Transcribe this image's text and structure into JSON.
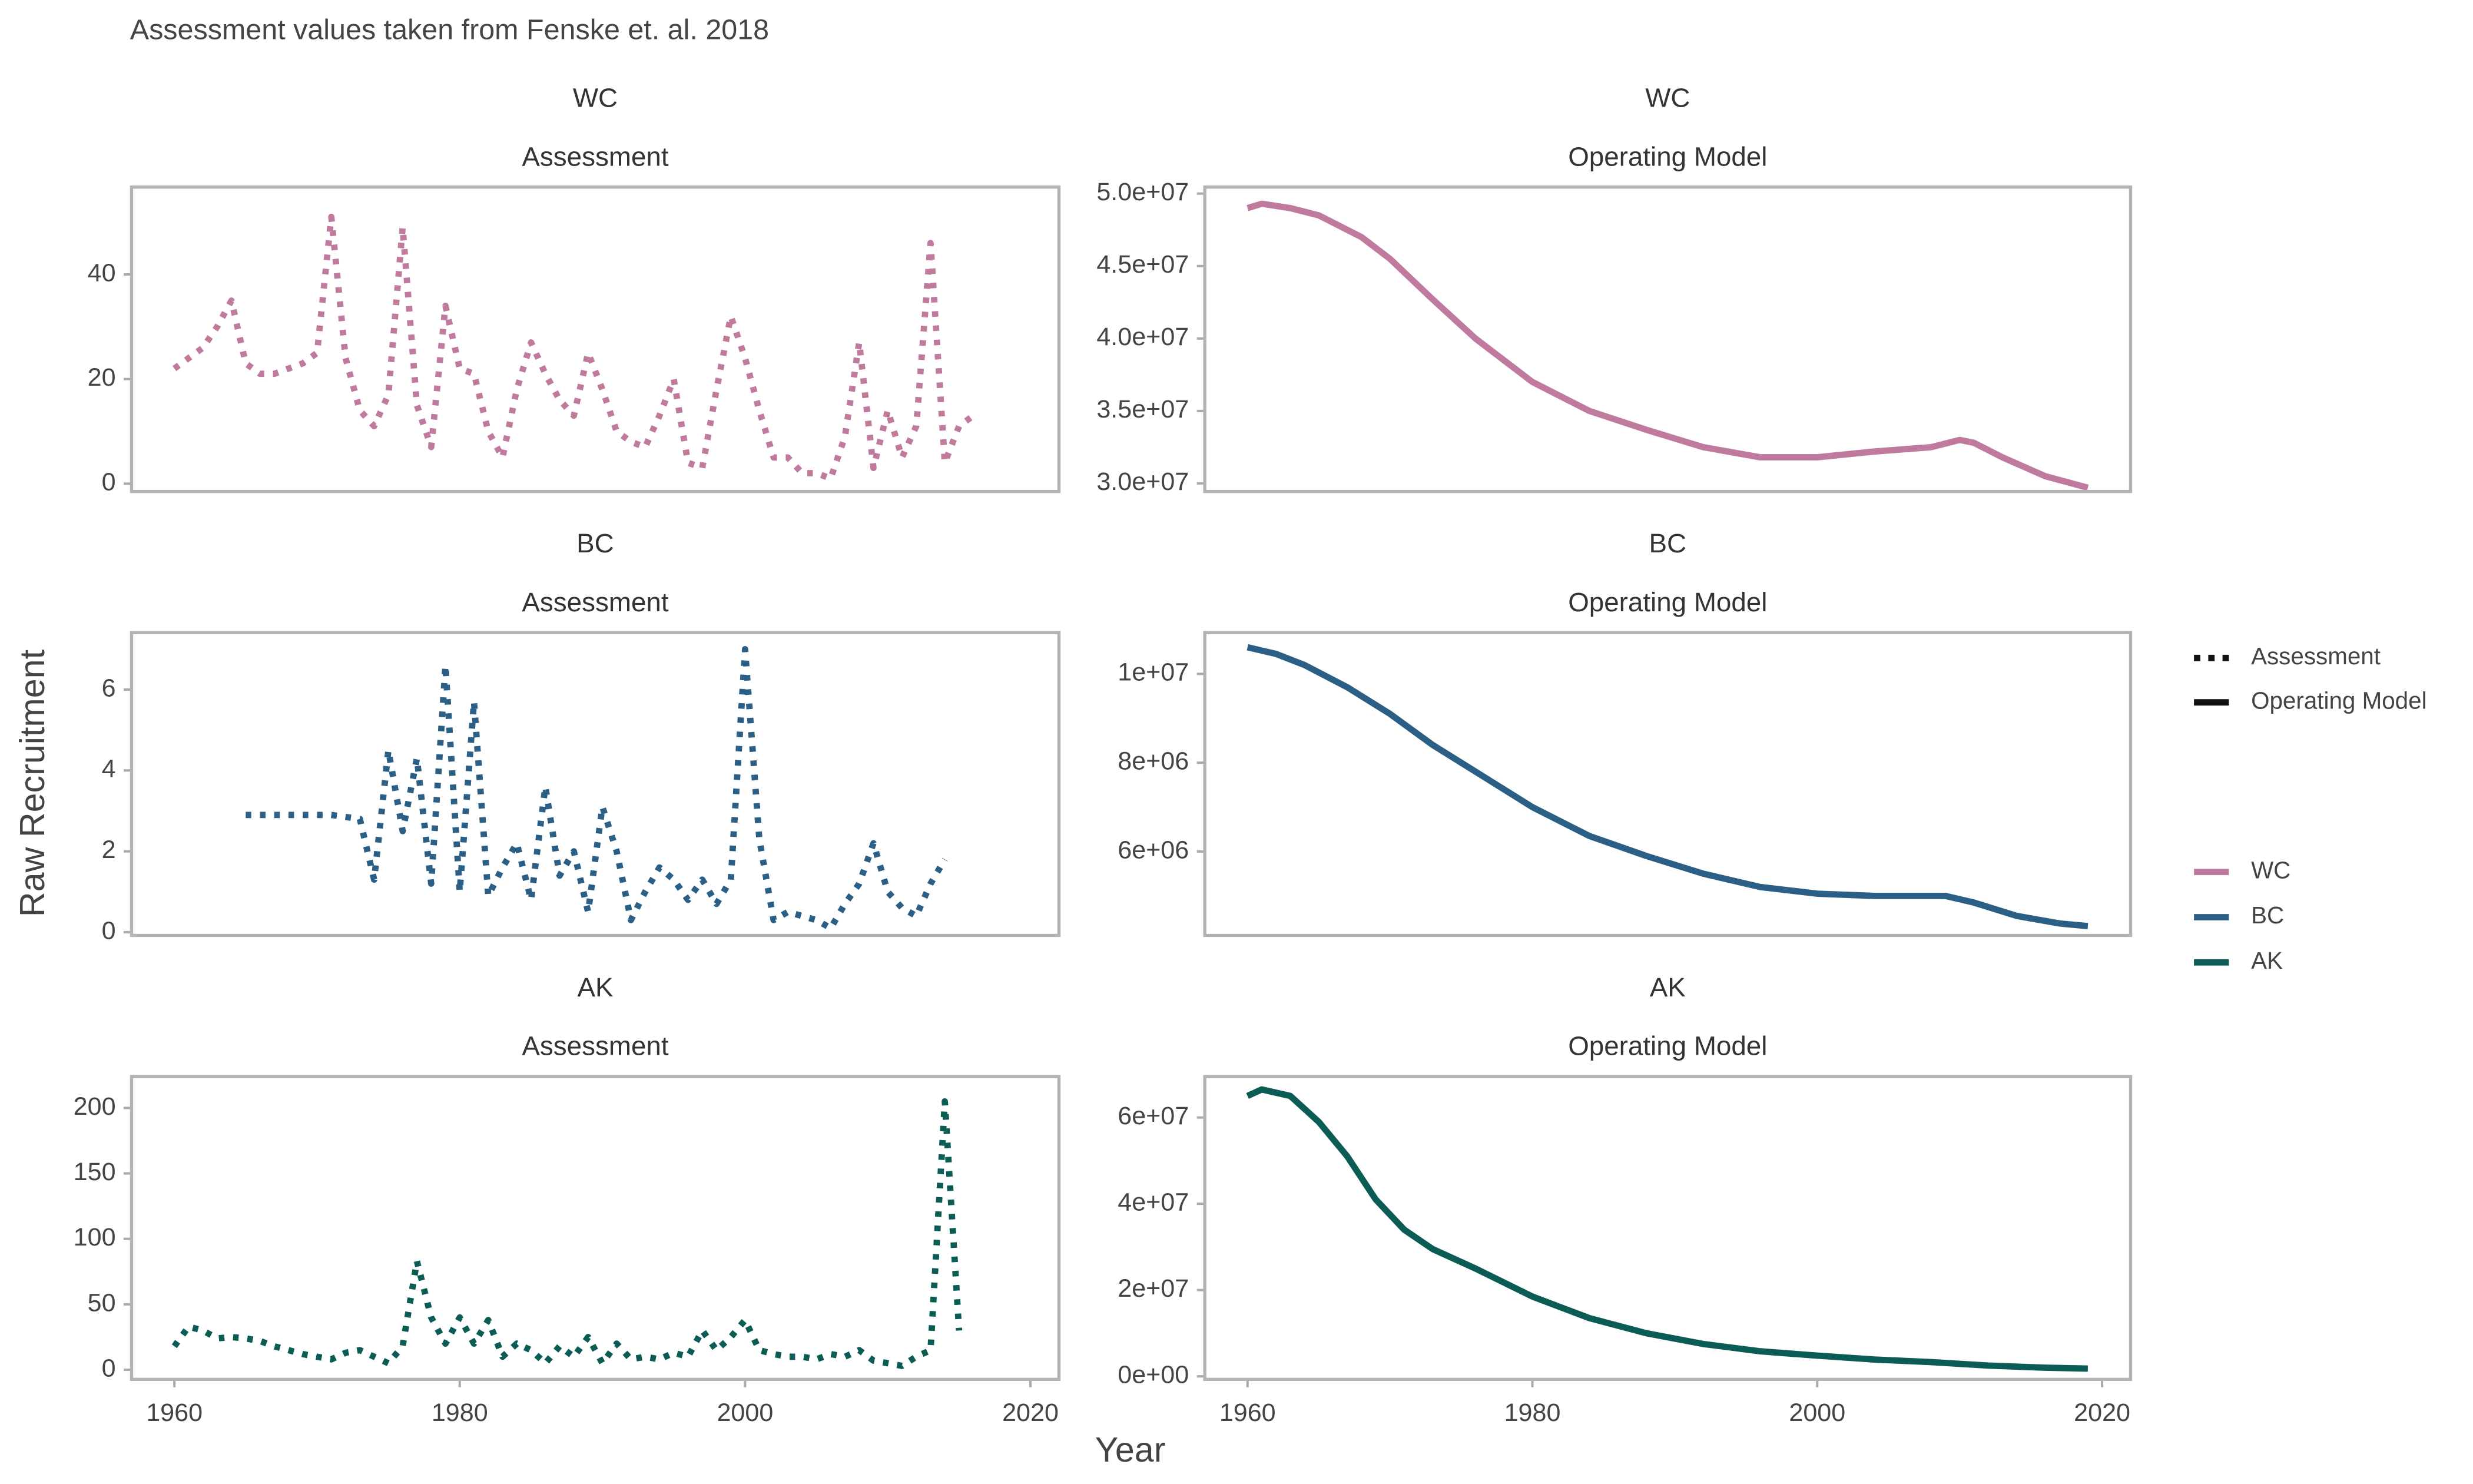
{
  "title": "Assessment values taken from Fenske et. al. 2018",
  "x_label": "Year",
  "y_label": "Raw Recruitment",
  "legend": {
    "linetype": [
      {
        "name": "Assessment",
        "dash": true
      },
      {
        "name": "Operating Model",
        "dash": false
      }
    ],
    "color": [
      {
        "name": "WC",
        "color": "#c07a9e"
      },
      {
        "name": "BC",
        "color": "#2b5f86"
      },
      {
        "name": "AK",
        "color": "#0b5c55"
      }
    ]
  },
  "chart_data": [
    {
      "type": "line",
      "region": "WC",
      "facet": "Assessment",
      "color": "#c07a9e",
      "dash": true,
      "x": [
        1960,
        1961,
        1962,
        1963,
        1964,
        1965,
        1966,
        1967,
        1968,
        1969,
        1970,
        1971,
        1972,
        1973,
        1974,
        1975,
        1976,
        1977,
        1978,
        1979,
        1980,
        1981,
        1982,
        1983,
        1984,
        1985,
        1986,
        1987,
        1988,
        1989,
        1990,
        1991,
        1992,
        1993,
        1994,
        1995,
        1996,
        1997,
        1998,
        1999,
        2000,
        2001,
        2002,
        2003,
        2004,
        2005,
        2006,
        2007,
        2008,
        2009,
        2010,
        2011,
        2012,
        2013,
        2014,
        2015,
        2016
      ],
      "values": [
        22,
        24,
        26,
        30,
        35,
        23,
        21,
        21,
        22,
        23,
        25,
        51,
        24,
        14,
        11,
        17,
        49,
        15,
        7,
        34,
        22,
        21,
        10,
        5,
        18,
        27,
        21,
        16,
        13,
        25,
        18,
        10,
        8,
        7,
        13,
        20,
        4,
        3,
        18,
        32,
        24,
        14,
        5,
        5,
        2,
        2,
        1,
        9,
        27,
        3,
        14,
        5,
        11,
        46,
        4,
        11,
        13
      ],
      "xlim": [
        1957,
        2022
      ],
      "ylim": [
        -1.5,
        56.7
      ],
      "yticks": [
        0,
        20,
        40
      ]
    },
    {
      "type": "line",
      "region": "WC",
      "facet": "Operating Model",
      "color": "#c07a9e",
      "dash": false,
      "x": [
        1960,
        1961,
        1963,
        1965,
        1968,
        1970,
        1973,
        1976,
        1980,
        1984,
        1988,
        1992,
        1996,
        2000,
        2004,
        2008,
        2010,
        2011,
        2013,
        2016,
        2019
      ],
      "values": [
        49000000,
        49300000,
        49000000,
        48500000,
        47000000,
        45500000,
        42700000,
        40000000,
        37000000,
        35000000,
        33700000,
        32500000,
        31800000,
        31800000,
        32200000,
        32500000,
        33000000,
        32800000,
        31800000,
        30500000,
        29700000
      ],
      "xlim": [
        1957,
        2022
      ],
      "ylim": [
        29440000,
        50450000
      ],
      "yticks": [
        {
          "value": 30000000,
          "label": "3.0e+07"
        },
        {
          "value": 35000000,
          "label": "3.5e+07"
        },
        {
          "value": 40000000,
          "label": "4.0e+07"
        },
        {
          "value": 45000000,
          "label": "4.5e+07"
        },
        {
          "value": 50000000,
          "label": "5.0e+07"
        }
      ]
    },
    {
      "type": "line",
      "region": "BC",
      "facet": "Assessment",
      "color": "#2b5f86",
      "dash": true,
      "x": [
        1965,
        1967,
        1969,
        1971,
        1973,
        1974,
        1975,
        1976,
        1977,
        1978,
        1979,
        1980,
        1981,
        1982,
        1983,
        1984,
        1985,
        1986,
        1987,
        1988,
        1989,
        1990,
        1991,
        1992,
        1993,
        1994,
        1995,
        1996,
        1997,
        1998,
        1999,
        2000,
        2001,
        2002,
        2003,
        2004,
        2005,
        2006,
        2007,
        2008,
        2009,
        2010,
        2011,
        2012,
        2013,
        2014
      ],
      "values": [
        2.9,
        2.9,
        2.9,
        2.9,
        2.8,
        1.3,
        4.5,
        2.5,
        4.3,
        1.2,
        6.6,
        1.0,
        5.7,
        0.9,
        1.6,
        2.2,
        0.8,
        3.6,
        1.4,
        2.0,
        0.5,
        3.1,
        2.0,
        0.3,
        1.0,
        1.6,
        1.3,
        0.8,
        1.3,
        0.7,
        1.3,
        7.0,
        2.3,
        0.3,
        0.5,
        0.4,
        0.3,
        0.1,
        0.7,
        1.2,
        2.2,
        1.0,
        0.6,
        0.4,
        1.2,
        1.8
      ],
      "xlim": [
        1957,
        2022
      ],
      "ylim": [
        -0.08,
        7.41
      ],
      "yticks": [
        0,
        2,
        4,
        6
      ]
    },
    {
      "type": "line",
      "region": "BC",
      "facet": "Operating Model",
      "color": "#2b5f86",
      "dash": false,
      "x": [
        1960,
        1962,
        1964,
        1967,
        1970,
        1973,
        1976,
        1980,
        1984,
        1988,
        1992,
        1996,
        2000,
        2004,
        2009,
        2011,
        2014,
        2017,
        2019
      ],
      "values": [
        10600000,
        10450000,
        10200000,
        9700000,
        9100000,
        8400000,
        7800000,
        7000000,
        6350000,
        5900000,
        5500000,
        5200000,
        5050000,
        5000000,
        5000000,
        4850000,
        4550000,
        4380000,
        4320000
      ],
      "xlim": [
        1957,
        2022
      ],
      "ylim": [
        4110000,
        10930000
      ],
      "yticks": [
        {
          "value": 6000000,
          "label": "6e+06"
        },
        {
          "value": 8000000,
          "label": "8e+06"
        },
        {
          "value": 10000000,
          "label": "1e+07"
        }
      ]
    },
    {
      "type": "line",
      "region": "AK",
      "facet": "Assessment",
      "color": "#0b5c55",
      "dash": true,
      "x": [
        1960,
        1961,
        1962,
        1963,
        1964,
        1965,
        1966,
        1967,
        1968,
        1969,
        1970,
        1971,
        1972,
        1973,
        1974,
        1975,
        1976,
        1977,
        1978,
        1979,
        1980,
        1981,
        1982,
        1983,
        1984,
        1985,
        1986,
        1987,
        1988,
        1989,
        1990,
        1991,
        1992,
        1993,
        1994,
        1995,
        1996,
        1997,
        1998,
        1999,
        2000,
        2001,
        2002,
        2003,
        2004,
        2005,
        2006,
        2007,
        2008,
        2009,
        2010,
        2011,
        2012,
        2013,
        2014,
        2015
      ],
      "values": [
        18,
        33,
        30,
        24,
        25,
        24,
        22,
        18,
        15,
        12,
        10,
        8,
        13,
        15,
        10,
        5,
        18,
        83,
        40,
        20,
        40,
        20,
        38,
        10,
        20,
        15,
        5,
        18,
        10,
        25,
        5,
        20,
        8,
        10,
        8,
        13,
        10,
        30,
        15,
        25,
        38,
        15,
        12,
        10,
        10,
        8,
        12,
        10,
        15,
        7,
        5,
        3,
        10,
        15,
        205,
        30
      ],
      "xlim": [
        1957,
        2022
      ],
      "ylim": [
        -7.3,
        224
      ],
      "yticks": [
        0,
        50,
        100,
        150,
        200
      ],
      "xticks": [
        1960,
        1980,
        2000,
        2020
      ]
    },
    {
      "type": "line",
      "region": "AK",
      "facet": "Operating Model",
      "color": "#0b5c55",
      "dash": false,
      "x": [
        1960,
        1961,
        1963,
        1965,
        1967,
        1969,
        1971,
        1973,
        1976,
        1980,
        1984,
        1988,
        1992,
        1996,
        2000,
        2004,
        2008,
        2012,
        2016,
        2019
      ],
      "values": [
        65000000,
        66500000,
        65000000,
        59000000,
        51000000,
        41000000,
        34000000,
        29500000,
        25000000,
        18500000,
        13500000,
        10000000,
        7500000,
        5800000,
        4800000,
        3900000,
        3300000,
        2500000,
        2000000,
        1800000
      ],
      "xlim": [
        1957,
        2022
      ],
      "ylim": [
        -700000,
        69500000
      ],
      "yticks": [
        {
          "value": 0,
          "label": "0e+00"
        },
        {
          "value": 20000000,
          "label": "2e+07"
        },
        {
          "value": 40000000,
          "label": "4e+07"
        },
        {
          "value": 60000000,
          "label": "6e+07"
        }
      ],
      "xticks": [
        1960,
        1980,
        2000,
        2020
      ]
    }
  ]
}
